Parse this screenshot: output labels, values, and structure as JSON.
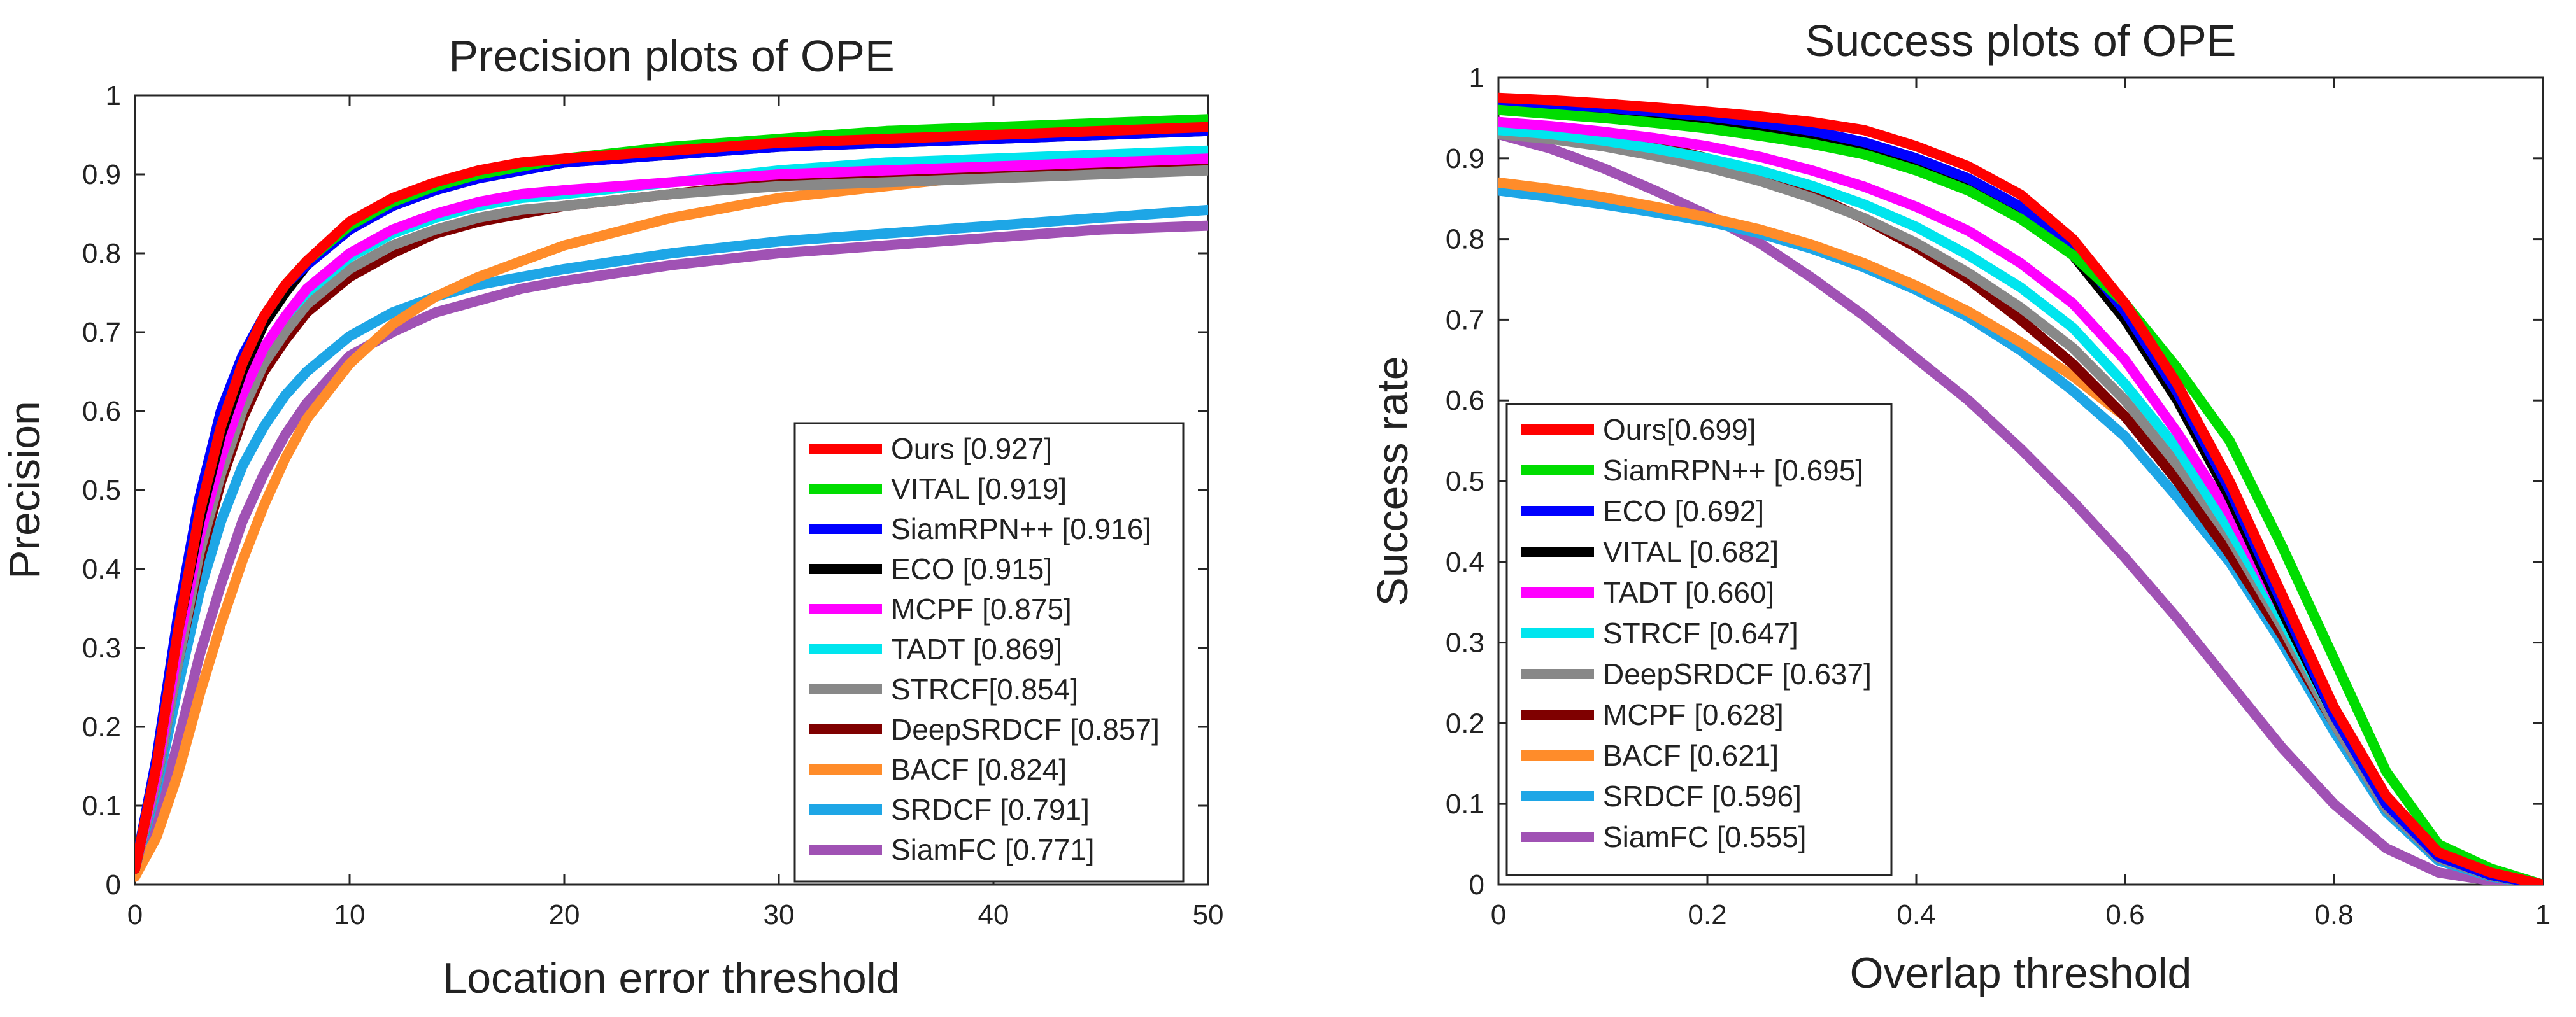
{
  "chart_data": [
    {
      "type": "line",
      "title": "Precision plots of OPE",
      "xlabel": "Location error threshold",
      "ylabel": "Precision",
      "xlim": [
        0,
        50
      ],
      "ylim": [
        0,
        1
      ],
      "xticks": [
        0,
        10,
        20,
        30,
        40,
        50
      ],
      "yticks": [
        0,
        0.1,
        0.2,
        0.3,
        0.4,
        0.5,
        0.6,
        0.7,
        0.8,
        0.9,
        1
      ],
      "x": [
        0,
        1,
        2,
        3,
        4,
        5,
        6,
        7,
        8,
        10,
        12,
        14,
        16,
        18,
        20,
        25,
        30,
        35,
        40,
        45,
        50
      ],
      "legend_position": "bottom-right",
      "series": [
        {
          "name": "Ours",
          "label": "Ours [0.927]",
          "color": "#ff0000",
          "values": [
            0.02,
            0.15,
            0.32,
            0.47,
            0.58,
            0.66,
            0.72,
            0.76,
            0.79,
            0.84,
            0.87,
            0.89,
            0.905,
            0.915,
            0.92,
            0.93,
            0.94,
            0.945,
            0.95,
            0.955,
            0.96
          ]
        },
        {
          "name": "VITAL",
          "label": "VITAL [0.919]",
          "color": "#00dd00",
          "values": [
            0.02,
            0.15,
            0.32,
            0.47,
            0.58,
            0.66,
            0.72,
            0.76,
            0.79,
            0.835,
            0.865,
            0.885,
            0.9,
            0.91,
            0.92,
            0.935,
            0.945,
            0.955,
            0.96,
            0.965,
            0.97
          ]
        },
        {
          "name": "SiamRPN++",
          "label": "SiamRPN++ [0.916]",
          "color": "#0000ff",
          "values": [
            0.02,
            0.16,
            0.34,
            0.49,
            0.6,
            0.67,
            0.72,
            0.76,
            0.785,
            0.83,
            0.86,
            0.88,
            0.895,
            0.905,
            0.915,
            0.925,
            0.935,
            0.94,
            0.945,
            0.95,
            0.955
          ]
        },
        {
          "name": "ECO",
          "label": "ECO [0.915]",
          "color": "#000000",
          "values": [
            0.02,
            0.15,
            0.32,
            0.46,
            0.57,
            0.65,
            0.71,
            0.75,
            0.785,
            0.83,
            0.86,
            0.88,
            0.895,
            0.905,
            0.915,
            0.925,
            0.935,
            0.94,
            0.945,
            0.95,
            0.955
          ]
        },
        {
          "name": "MCPF",
          "label": "MCPF [0.875]",
          "color": "#ff00ff",
          "values": [
            0.02,
            0.14,
            0.3,
            0.44,
            0.54,
            0.62,
            0.68,
            0.72,
            0.755,
            0.8,
            0.83,
            0.85,
            0.865,
            0.875,
            0.88,
            0.89,
            0.9,
            0.905,
            0.91,
            0.915,
            0.92
          ]
        },
        {
          "name": "TADT",
          "label": "TADT [0.869]",
          "color": "#00e5ee",
          "values": [
            0.02,
            0.14,
            0.3,
            0.44,
            0.54,
            0.62,
            0.68,
            0.72,
            0.75,
            0.795,
            0.825,
            0.845,
            0.86,
            0.87,
            0.875,
            0.89,
            0.905,
            0.915,
            0.92,
            0.925,
            0.93
          ]
        },
        {
          "name": "STRCF",
          "label": "STRCF[0.854]",
          "color": "#888888",
          "values": [
            0.02,
            0.13,
            0.28,
            0.42,
            0.52,
            0.6,
            0.66,
            0.7,
            0.735,
            0.78,
            0.81,
            0.83,
            0.845,
            0.855,
            0.86,
            0.875,
            0.885,
            0.89,
            0.895,
            0.9,
            0.905
          ]
        },
        {
          "name": "DeepSRDCF",
          "label": "DeepSRDCF [0.857]",
          "color": "#7f0000",
          "values": [
            0.02,
            0.13,
            0.28,
            0.41,
            0.51,
            0.59,
            0.65,
            0.69,
            0.725,
            0.77,
            0.8,
            0.825,
            0.84,
            0.85,
            0.86,
            0.875,
            0.89,
            0.9,
            0.905,
            0.91,
            0.915
          ]
        },
        {
          "name": "BACF",
          "label": "BACF [0.824]",
          "color": "#ff8c2a",
          "values": [
            0.01,
            0.06,
            0.14,
            0.24,
            0.33,
            0.41,
            0.48,
            0.54,
            0.59,
            0.66,
            0.71,
            0.745,
            0.77,
            0.79,
            0.81,
            0.845,
            0.87,
            0.885,
            0.9,
            0.91,
            0.915
          ]
        },
        {
          "name": "SRDCF",
          "label": "SRDCF [0.791]",
          "color": "#1ea6e6",
          "values": [
            0.02,
            0.12,
            0.25,
            0.37,
            0.46,
            0.53,
            0.58,
            0.62,
            0.65,
            0.695,
            0.725,
            0.745,
            0.76,
            0.77,
            0.78,
            0.8,
            0.815,
            0.825,
            0.835,
            0.845,
            0.855
          ]
        },
        {
          "name": "SiamFC",
          "label": "SiamFC [0.771]",
          "color": "#a052b4",
          "values": [
            0.01,
            0.08,
            0.18,
            0.29,
            0.38,
            0.46,
            0.52,
            0.57,
            0.61,
            0.67,
            0.7,
            0.725,
            0.74,
            0.755,
            0.765,
            0.785,
            0.8,
            0.81,
            0.82,
            0.83,
            0.835
          ]
        }
      ]
    },
    {
      "type": "line",
      "title": "Success plots of OPE",
      "xlabel": "Overlap threshold",
      "ylabel": "Success rate",
      "xlim": [
        0,
        1
      ],
      "ylim": [
        0,
        1
      ],
      "xticks": [
        0,
        0.2,
        0.4,
        0.6,
        0.8,
        1
      ],
      "yticks": [
        0,
        0.1,
        0.2,
        0.3,
        0.4,
        0.5,
        0.6,
        0.7,
        0.8,
        0.9,
        1
      ],
      "x": [
        0,
        0.05,
        0.1,
        0.15,
        0.2,
        0.25,
        0.3,
        0.35,
        0.4,
        0.45,
        0.5,
        0.55,
        0.6,
        0.65,
        0.7,
        0.75,
        0.8,
        0.85,
        0.9,
        0.95,
        1.0
      ],
      "legend_position": "bottom-left",
      "series": [
        {
          "name": "Ours",
          "label": "Ours[0.699]",
          "color": "#ff0000",
          "values": [
            0.975,
            0.972,
            0.968,
            0.963,
            0.958,
            0.952,
            0.945,
            0.935,
            0.915,
            0.89,
            0.855,
            0.8,
            0.72,
            0.62,
            0.5,
            0.36,
            0.22,
            0.11,
            0.04,
            0.015,
            0.0
          ]
        },
        {
          "name": "SiamRPN++",
          "label": "SiamRPN++  [0.695]",
          "color": "#00dd00",
          "values": [
            0.96,
            0.955,
            0.95,
            0.944,
            0.937,
            0.928,
            0.918,
            0.905,
            0.885,
            0.86,
            0.825,
            0.78,
            0.72,
            0.64,
            0.55,
            0.42,
            0.28,
            0.14,
            0.05,
            0.02,
            0.0
          ]
        },
        {
          "name": "ECO",
          "label": "ECO [0.692]",
          "color": "#0000ff",
          "values": [
            0.97,
            0.967,
            0.963,
            0.958,
            0.952,
            0.944,
            0.934,
            0.92,
            0.9,
            0.875,
            0.84,
            0.79,
            0.71,
            0.61,
            0.49,
            0.35,
            0.21,
            0.1,
            0.035,
            0.012,
            0.0
          ]
        },
        {
          "name": "VITAL",
          "label": "VITAL [0.682]",
          "color": "#000000",
          "values": [
            0.97,
            0.966,
            0.961,
            0.955,
            0.948,
            0.94,
            0.93,
            0.915,
            0.895,
            0.865,
            0.83,
            0.78,
            0.7,
            0.6,
            0.48,
            0.34,
            0.21,
            0.1,
            0.035,
            0.012,
            0.0
          ]
        },
        {
          "name": "TADT",
          "label": "TADT [0.660]",
          "color": "#ff00ff",
          "values": [
            0.945,
            0.94,
            0.933,
            0.925,
            0.915,
            0.902,
            0.885,
            0.865,
            0.84,
            0.81,
            0.77,
            0.72,
            0.65,
            0.56,
            0.46,
            0.34,
            0.21,
            0.1,
            0.035,
            0.012,
            0.0
          ]
        },
        {
          "name": "STRCF",
          "label": "STRCF [0.647]",
          "color": "#00e5ee",
          "values": [
            0.935,
            0.93,
            0.922,
            0.912,
            0.9,
            0.885,
            0.866,
            0.843,
            0.815,
            0.78,
            0.74,
            0.69,
            0.62,
            0.54,
            0.44,
            0.33,
            0.21,
            0.1,
            0.035,
            0.012,
            0.0
          ]
        },
        {
          "name": "DeepSRDCF",
          "label": "DeepSRDCF [0.637]",
          "color": "#888888",
          "values": [
            0.93,
            0.924,
            0.915,
            0.903,
            0.889,
            0.872,
            0.851,
            0.826,
            0.795,
            0.758,
            0.715,
            0.665,
            0.6,
            0.52,
            0.43,
            0.32,
            0.2,
            0.095,
            0.033,
            0.011,
            0.0
          ]
        },
        {
          "name": "MCPF",
          "label": "MCPF [0.628]",
          "color": "#7f0000",
          "values": [
            0.945,
            0.938,
            0.929,
            0.916,
            0.9,
            0.88,
            0.855,
            0.825,
            0.79,
            0.75,
            0.7,
            0.645,
            0.58,
            0.5,
            0.41,
            0.31,
            0.2,
            0.095,
            0.033,
            0.011,
            0.0
          ]
        },
        {
          "name": "BACF",
          "label": "BACF [0.621]",
          "color": "#ff8c2a",
          "values": [
            0.87,
            0.862,
            0.852,
            0.84,
            0.827,
            0.812,
            0.793,
            0.77,
            0.742,
            0.71,
            0.672,
            0.63,
            0.58,
            0.515,
            0.435,
            0.34,
            0.22,
            0.1,
            0.035,
            0.012,
            0.0
          ]
        },
        {
          "name": "SRDCF",
          "label": "SRDCF [0.596]",
          "color": "#1ea6e6",
          "values": [
            0.86,
            0.852,
            0.843,
            0.833,
            0.822,
            0.807,
            0.788,
            0.765,
            0.737,
            0.703,
            0.662,
            0.612,
            0.555,
            0.48,
            0.4,
            0.3,
            0.19,
            0.09,
            0.03,
            0.01,
            0.0
          ]
        },
        {
          "name": "SiamFC",
          "label": "SiamFC [0.555]",
          "color": "#a052b4",
          "values": [
            0.93,
            0.912,
            0.888,
            0.86,
            0.83,
            0.795,
            0.752,
            0.705,
            0.652,
            0.6,
            0.54,
            0.475,
            0.405,
            0.33,
            0.25,
            0.17,
            0.1,
            0.045,
            0.015,
            0.005,
            0.0
          ]
        }
      ]
    }
  ]
}
